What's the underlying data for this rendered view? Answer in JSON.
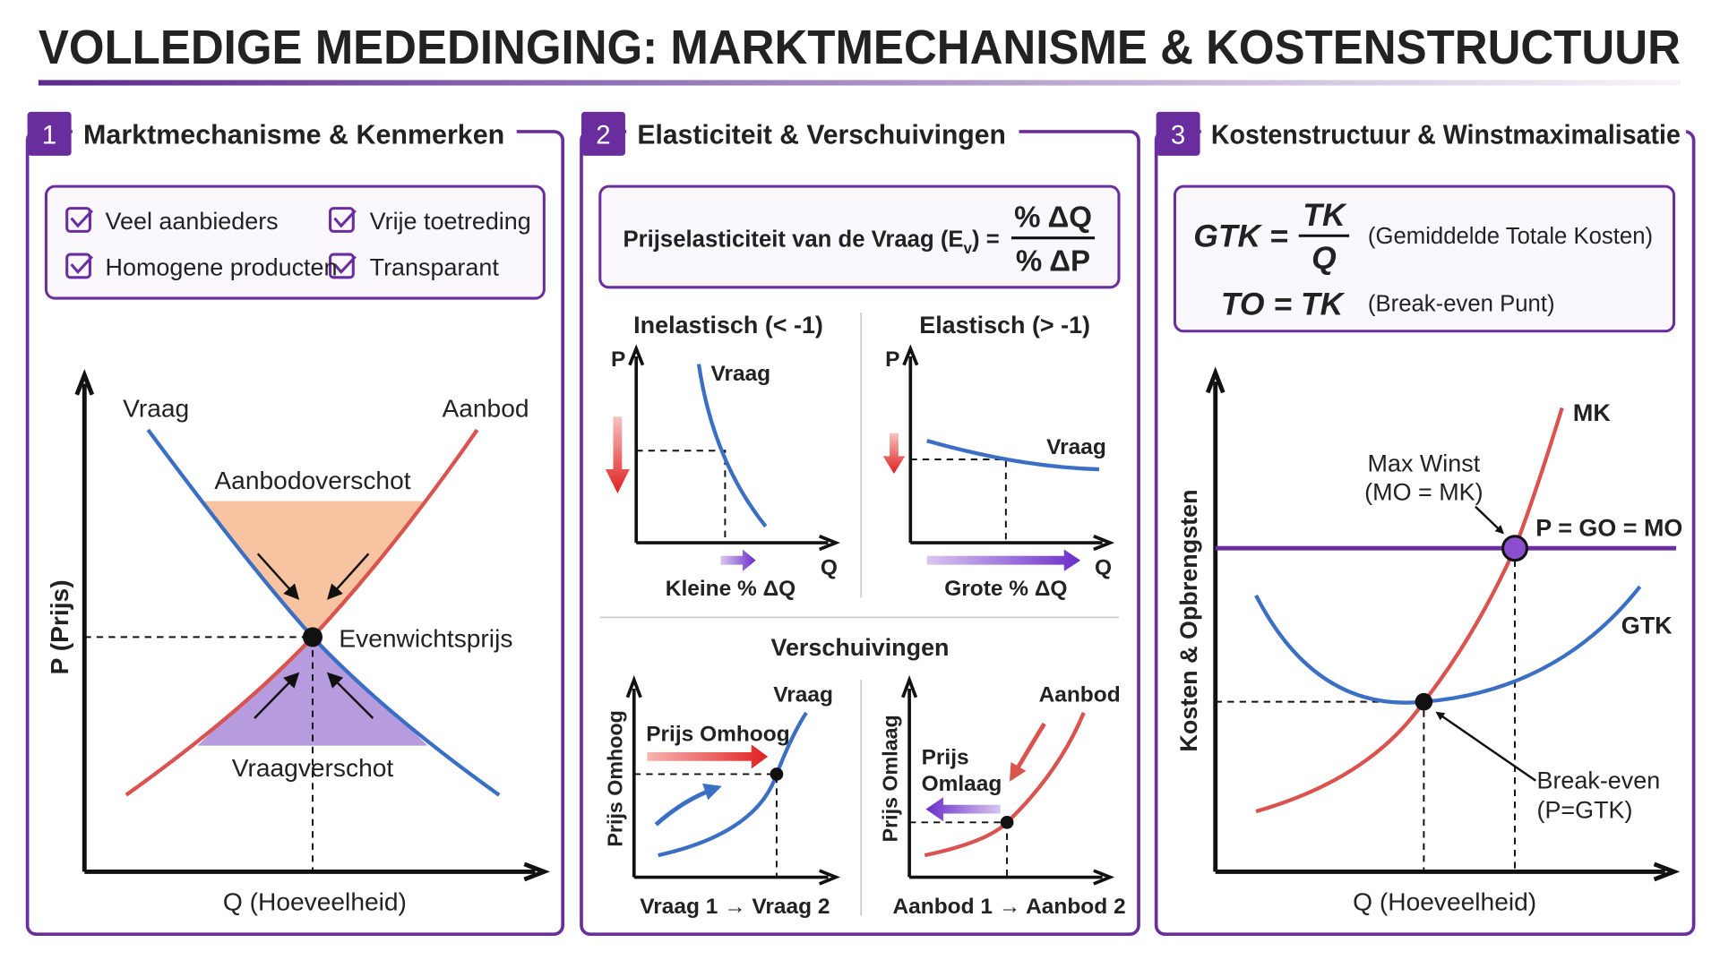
{
  "title": "VOLLEDIGE MEDEDINGING: MARKTMECHANISME & KOSTENSTRUCTUUR",
  "panels": [
    {
      "number": "1",
      "title": "Marktmechanisme & Kenmerken",
      "checklist": [
        "Veel aanbieders",
        "Vrije toetreding",
        "Homogene producten",
        "Transparant"
      ],
      "chart": {
        "demand": "Vraag",
        "supply": "Aanbod",
        "surplus": "Aanbodoverschot",
        "equilibrium": "Evenwichtsprijs",
        "shortage": "Vraagverschot",
        "y_axis": "P (Prijs)",
        "x_axis": "Q (Hoeveelheid)"
      }
    },
    {
      "number": "2",
      "title": "Elasticiteit & Verschuivingen",
      "formula": {
        "label": "Prijselasticiteit van de Vraag (E",
        "subscript": "v",
        "close": ") =",
        "numerator": "% ΔQ",
        "denominator": "% ΔP"
      },
      "inelastic": {
        "title": "Inelastisch (< -1)",
        "p": "P",
        "q": "Q",
        "curve": "Vraag",
        "arrow": "Kleine % ΔQ"
      },
      "elastic": {
        "title": "Elastisch (> -1)",
        "p": "P",
        "q": "Q",
        "curve": "Vraag",
        "arrow": "Grote % ΔQ"
      },
      "shifts_title": "Verschuivingen",
      "demand_shift": {
        "y_axis": "Prijs Omhoog",
        "curve": "Vraag",
        "arrow": "Prijs Omhoog",
        "caption": "Vraag 1 → Vraag 2"
      },
      "supply_shift": {
        "y_axis": "Prijs Omlaag",
        "curve": "Aanbod",
        "arrow": [
          "Prijs",
          "Omlaag"
        ],
        "caption": "Aanbod 1 → Aanbod 2"
      }
    },
    {
      "number": "3",
      "title": "Kostenstructuur & Winstmaximalisatie",
      "formulas": {
        "gtk_lhs": "GTK =",
        "gtk_numerator": "TK",
        "gtk_denominator": "Q",
        "gtk_note": "(Gemiddelde Totale Kosten)",
        "to": "TO = TK",
        "to_note": "(Break-even Punt)"
      },
      "chart": {
        "y_axis": "Kosten & Opbrengsten",
        "x_axis": "Q (Hoeveelheid)",
        "mk": "MK",
        "gtk": "GTK",
        "price": "P = GO = MO",
        "max_profit": [
          "Max Winst",
          "(MO = MK)"
        ],
        "break_even": [
          "Break-even",
          "(P=GTK)"
        ]
      }
    }
  ]
}
